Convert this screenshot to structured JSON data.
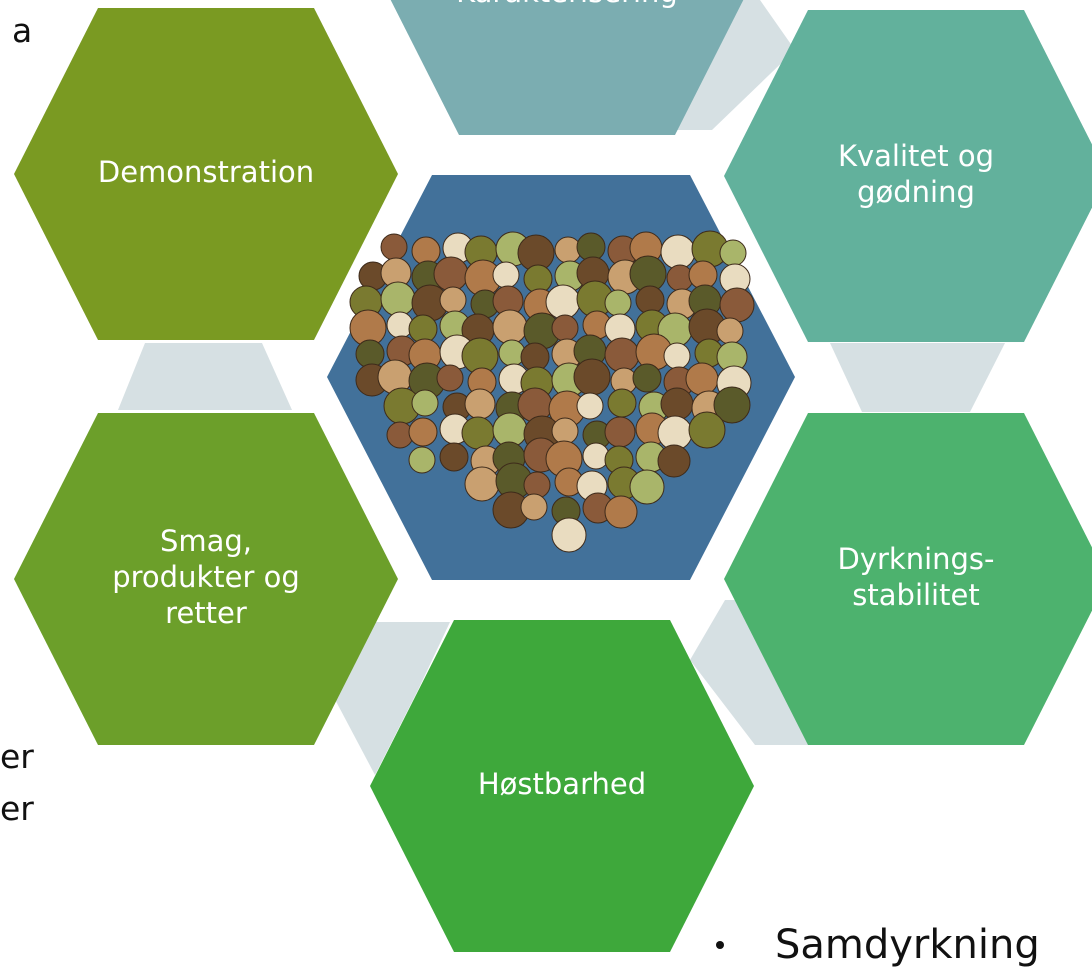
{
  "nodes": [
    {
      "lines": [
        "Karakterisering"
      ]
    },
    {
      "lines": [
        "Demonstration"
      ]
    },
    {
      "lines": [
        "Kvalitet og",
        "gødning"
      ]
    },
    {
      "lines": [
        "Smag,",
        "produkter og",
        "retter"
      ]
    },
    {
      "lines": [
        "Dyrknings-",
        "stabilitet"
      ]
    },
    {
      "lines": [
        "Høstbarhed"
      ]
    }
  ],
  "side_text": [
    "a",
    "er",
    "er"
  ],
  "bullet": "Samdyrkning"
}
